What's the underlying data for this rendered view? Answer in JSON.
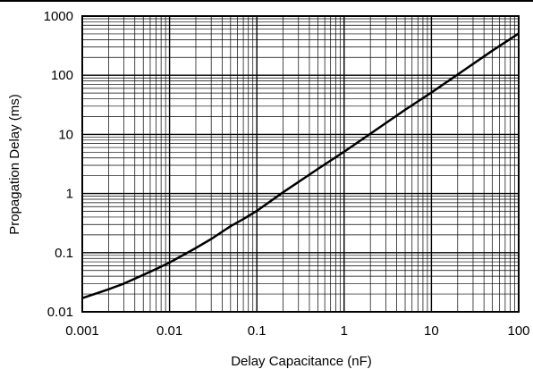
{
  "chart_data": {
    "type": "line",
    "xlabel": "Delay Capacitance (nF)",
    "ylabel": "Propagation Delay (ms)",
    "x_scale": "log",
    "y_scale": "log",
    "xlim": [
      0.001,
      100
    ],
    "ylim": [
      0.01,
      1000
    ],
    "x_ticks": [
      {
        "value": 0.001,
        "label": "0.001"
      },
      {
        "value": 0.01,
        "label": "0.01"
      },
      {
        "value": 0.1,
        "label": "0.1"
      },
      {
        "value": 1,
        "label": "1"
      },
      {
        "value": 10,
        "label": "10"
      },
      {
        "value": 100,
        "label": "100"
      }
    ],
    "y_ticks": [
      {
        "value": 0.01,
        "label": "0.01"
      },
      {
        "value": 0.1,
        "label": "0.1"
      },
      {
        "value": 1,
        "label": "1"
      },
      {
        "value": 10,
        "label": "10"
      },
      {
        "value": 100,
        "label": "100"
      },
      {
        "value": 1000,
        "label": "1000"
      }
    ],
    "grid": true,
    "series": [
      {
        "color": "#000000",
        "x": [
          0.001,
          0.002,
          0.003,
          0.005,
          0.007,
          0.01,
          0.02,
          0.03,
          0.05,
          0.07,
          0.1,
          0.2,
          0.5,
          1,
          2,
          5,
          10,
          20,
          50,
          100
        ],
        "y": [
          0.017,
          0.024,
          0.03,
          0.042,
          0.053,
          0.068,
          0.12,
          0.17,
          0.28,
          0.37,
          0.51,
          1.05,
          2.6,
          5.1,
          10.3,
          26,
          51,
          103,
          260,
          510
        ]
      }
    ]
  }
}
